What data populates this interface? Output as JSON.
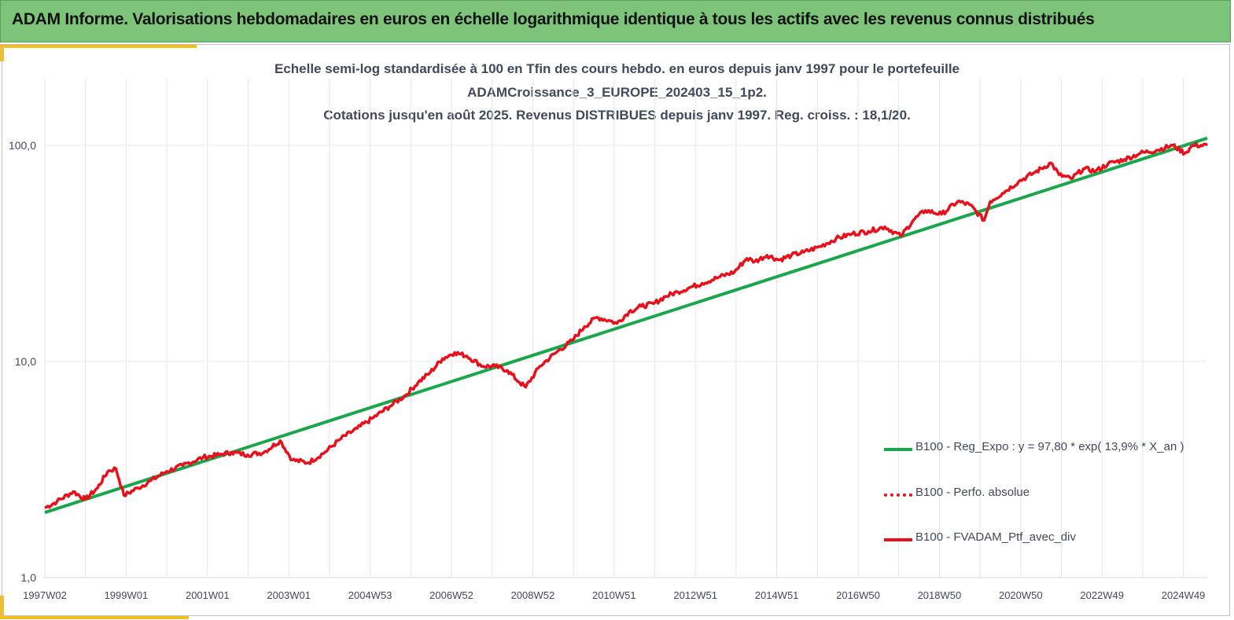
{
  "banner": {
    "title": "ADAM Informe. Valorisations hebdomadaires en euros en échelle logarithmique identique à tous les actifs avec les revenus connus distribués"
  },
  "colors": {
    "banner_bg": "#7dc47a",
    "accent": "#f4bf1a",
    "regression": "#1aa64a",
    "portfolio": "#e8101a",
    "perfo": "#e8101a",
    "text": "#404a5c"
  },
  "chart_data": {
    "type": "line",
    "title_lines": [
      "Echelle semi-log standardisée à 100 en Tfin des cours hebdo.  en euros depuis janv 1997 pour le portefeuille",
      "ADAMCroissance_3_EUROPE_202403_15_1p2.",
      "Cotations  jusqu'en août 2025. Revenus DISTRIBUES depuis janv 1997. Reg. croiss. : 18,1/20."
    ],
    "y_scale": "log",
    "ylim": [
      1,
      100
    ],
    "y_ticks": [
      "100,0",
      "10,0",
      "1,0"
    ],
    "x_tick_labels": [
      "1997W02",
      "1999W01",
      "2001W01",
      "2003W01",
      "2004W53",
      "2006W52",
      "2008W52",
      "2010W51",
      "2012W51",
      "2014W51",
      "2016W50",
      "2018W50",
      "2020W50",
      "2022W49",
      "2024W49"
    ],
    "xlim": [
      1997.0,
      2025.65
    ],
    "grid": "vertical",
    "legend_position": "right",
    "legend": [
      "B100 - Reg_Expo : y = 97,80 * exp( 13,9% *  X_an )",
      "B100 - Perfo. absolue",
      "B100 - FVADAM_Ptf_avec_div"
    ],
    "series": [
      {
        "name": "B100 - Reg_Expo : y = 97,80 * exp( 13,9% *  X_an )",
        "x": [
          1997.0,
          2025.65
        ],
        "values": [
          2.0,
          108.0
        ]
      },
      {
        "name": "B100 - FVADAM_Ptf_avec_div",
        "x": [
          1997.0,
          1997.3,
          1997.7,
          1998.0,
          1998.3,
          1998.55,
          1998.75,
          1998.95,
          1999.3,
          1999.6,
          2000.0,
          2000.4,
          2000.9,
          2001.3,
          2001.6,
          2002.0,
          2002.4,
          2002.8,
          2003.1,
          2003.5,
          2003.9,
          2004.3,
          2004.7,
          2005.1,
          2005.5,
          2005.9,
          2006.2,
          2006.5,
          2006.8,
          2007.1,
          2007.4,
          2007.8,
          2008.1,
          2008.4,
          2008.7,
          2008.85,
          2009.2,
          2009.6,
          2010.0,
          2010.3,
          2010.6,
          2010.9,
          2011.1,
          2011.4,
          2011.7,
          2012.0,
          2012.3,
          2012.6,
          2012.9,
          2013.2,
          2013.6,
          2014.0,
          2014.3,
          2014.5,
          2014.8,
          2015.1,
          2015.4,
          2015.7,
          2016.1,
          2016.5,
          2016.9,
          2017.3,
          2017.7,
          2018.1,
          2018.4,
          2018.7,
          2019.1,
          2019.5,
          2019.8,
          2020.15,
          2020.3,
          2020.6,
          2021.0,
          2021.4,
          2021.8,
          2022.0,
          2022.3,
          2022.6,
          2022.9,
          2023.2,
          2023.6,
          2024.0,
          2024.4,
          2024.8,
          2025.1,
          2025.3,
          2025.65
        ],
        "values": [
          2.1,
          2.25,
          2.5,
          2.3,
          2.6,
          3.1,
          3.2,
          2.4,
          2.6,
          2.8,
          3.1,
          3.3,
          3.6,
          3.7,
          3.8,
          3.7,
          3.8,
          4.3,
          3.5,
          3.4,
          3.8,
          4.4,
          4.9,
          5.5,
          6.2,
          7.0,
          8.0,
          8.9,
          10.3,
          11.0,
          10.6,
          9.5,
          9.5,
          9.1,
          8.0,
          7.6,
          9.5,
          11.0,
          12.5,
          14.5,
          16.0,
          15.5,
          15.0,
          17.0,
          18.0,
          18.5,
          20.0,
          21.0,
          22.0,
          23.0,
          24.5,
          26.0,
          30.0,
          29.0,
          31.0,
          29.5,
          31.0,
          32.0,
          34.0,
          37.0,
          39.0,
          40.0,
          42.0,
          38.0,
          45.0,
          50.0,
          48.0,
          55.0,
          53.0,
          45.0,
          55.0,
          60.0,
          68.0,
          75.0,
          83.0,
          73.0,
          70.0,
          78.0,
          76.0,
          82.0,
          86.0,
          92.0,
          95.0,
          100.0,
          92.0,
          100.0,
          100.0
        ]
      }
    ]
  }
}
